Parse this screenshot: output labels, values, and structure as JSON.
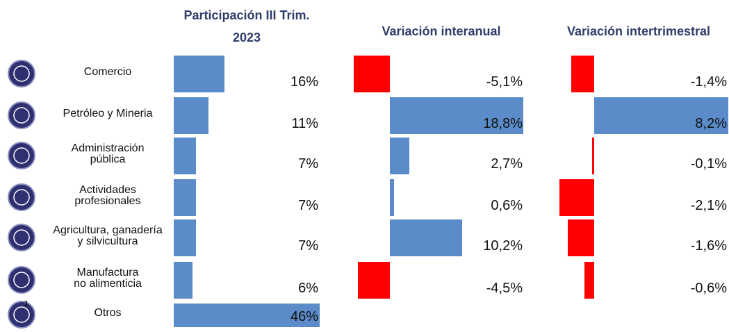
{
  "chart_data": [
    {
      "type": "hbar",
      "title": "Participación III Trim.\n2023",
      "categories": [
        "Comercio",
        "Petróleo y Mineria",
        "Administración\npública",
        "Actividades\nprofesionales",
        "Agricultura, ganadería\ny silvicultura",
        "Manufactura\nno alimenticia",
        "Otros"
      ],
      "annotation": "1",
      "values": [
        16,
        11,
        7,
        7,
        7,
        6,
        46
      ],
      "value_labels": [
        "16%",
        "11%",
        "7%",
        "7%",
        "7%",
        "6%",
        "46%"
      ],
      "xlim": [
        0,
        46
      ],
      "color": "#5b8bc9",
      "negative_color": "#ff0000"
    },
    {
      "type": "hbar",
      "title": "Variación interanual",
      "values": [
        -5.1,
        18.8,
        2.7,
        0.6,
        10.2,
        -4.5
      ],
      "value_labels": [
        "-5,1%",
        "18,8%",
        "2,7%",
        "0,6%",
        "10,2%",
        "-4,5%"
      ],
      "xlim": [
        -5.5,
        19
      ],
      "color": "#5b8bc9",
      "negative_color": "#ff0000"
    },
    {
      "type": "hbar",
      "title": "Variación intertrimestral",
      "values": [
        -1.4,
        8.2,
        -0.1,
        -2.1,
        -1.6,
        -0.6
      ],
      "value_labels": [
        "-1,4%",
        "8,2%",
        "-0,1%",
        "-2,1%",
        "-1,6%",
        "-0,6%"
      ],
      "xlim": [
        -2.2,
        8.2
      ],
      "color": "#5b8bc9",
      "negative_color": "#ff0000"
    }
  ]
}
